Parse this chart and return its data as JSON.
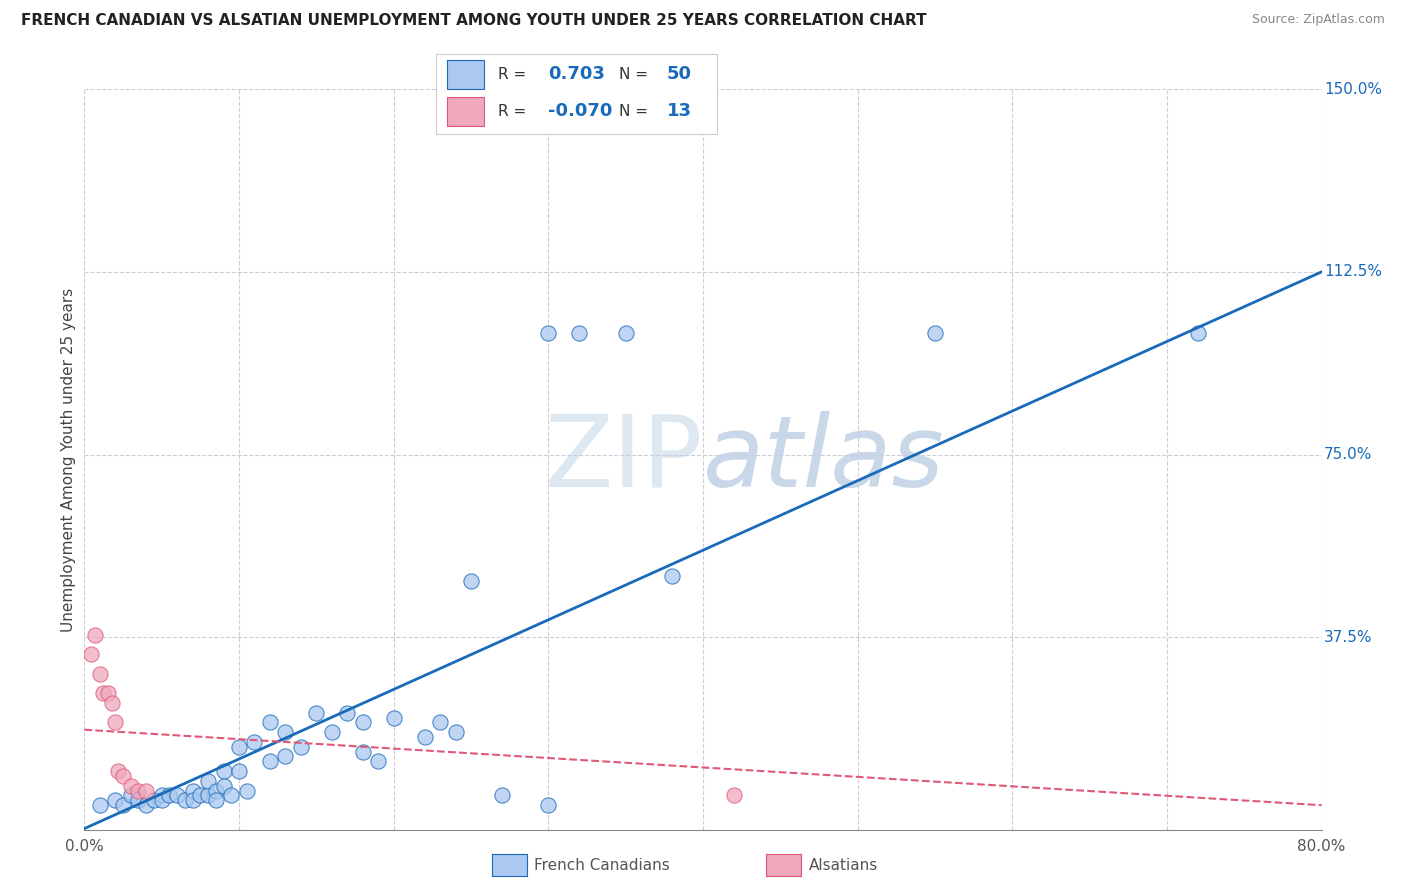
{
  "title": "FRENCH CANADIAN VS ALSATIAN UNEMPLOYMENT AMONG YOUTH UNDER 25 YEARS CORRELATION CHART",
  "source": "Source: ZipAtlas.com",
  "ylabel": "Unemployment Among Youth under 25 years",
  "xlim": [
    0.0,
    0.8
  ],
  "ylim": [
    -0.02,
    1.5
  ],
  "blue_r": 0.703,
  "blue_n": 50,
  "pink_r": -0.07,
  "pink_n": 13,
  "blue_color": "#aac8f0",
  "pink_color": "#f0a8bc",
  "blue_line_color": "#1a6aba",
  "pink_line_color": "#e05878",
  "background_color": "#ffffff",
  "grid_color": "#ccccdd",
  "watermark_color": "#d8e4f0",
  "french_canadian_x": [
    0.01,
    0.02,
    0.025,
    0.03,
    0.035,
    0.04,
    0.045,
    0.05,
    0.05,
    0.055,
    0.06,
    0.065,
    0.07,
    0.07,
    0.075,
    0.08,
    0.08,
    0.085,
    0.085,
    0.09,
    0.09,
    0.095,
    0.1,
    0.1,
    0.105,
    0.11,
    0.12,
    0.12,
    0.13,
    0.13,
    0.14,
    0.15,
    0.16,
    0.17,
    0.18,
    0.18,
    0.19,
    0.2,
    0.22,
    0.23,
    0.24,
    0.25,
    0.27,
    0.3,
    0.32,
    0.35,
    0.38,
    0.3,
    0.55,
    0.72
  ],
  "french_canadian_y": [
    0.03,
    0.04,
    0.03,
    0.05,
    0.04,
    0.03,
    0.04,
    0.05,
    0.04,
    0.05,
    0.05,
    0.04,
    0.06,
    0.04,
    0.05,
    0.05,
    0.08,
    0.06,
    0.04,
    0.1,
    0.07,
    0.05,
    0.15,
    0.1,
    0.06,
    0.16,
    0.2,
    0.12,
    0.18,
    0.13,
    0.15,
    0.22,
    0.18,
    0.22,
    0.2,
    0.14,
    0.12,
    0.21,
    0.17,
    0.2,
    0.18,
    0.49,
    0.05,
    0.03,
    1.0,
    1.0,
    0.5,
    1.0,
    1.0,
    1.0
  ],
  "alsatian_x": [
    0.004,
    0.007,
    0.01,
    0.012,
    0.015,
    0.018,
    0.02,
    0.022,
    0.025,
    0.03,
    0.035,
    0.04,
    0.42
  ],
  "alsatian_y": [
    0.34,
    0.38,
    0.3,
    0.26,
    0.26,
    0.24,
    0.2,
    0.1,
    0.09,
    0.07,
    0.06,
    0.06,
    0.05
  ],
  "blue_line_x0": 0.0,
  "blue_line_y0": -0.018,
  "blue_line_x1": 0.8,
  "blue_line_y1": 1.125,
  "pink_line_x0": 0.0,
  "pink_line_y0": 0.185,
  "pink_line_x1": 0.8,
  "pink_line_y1": 0.03
}
